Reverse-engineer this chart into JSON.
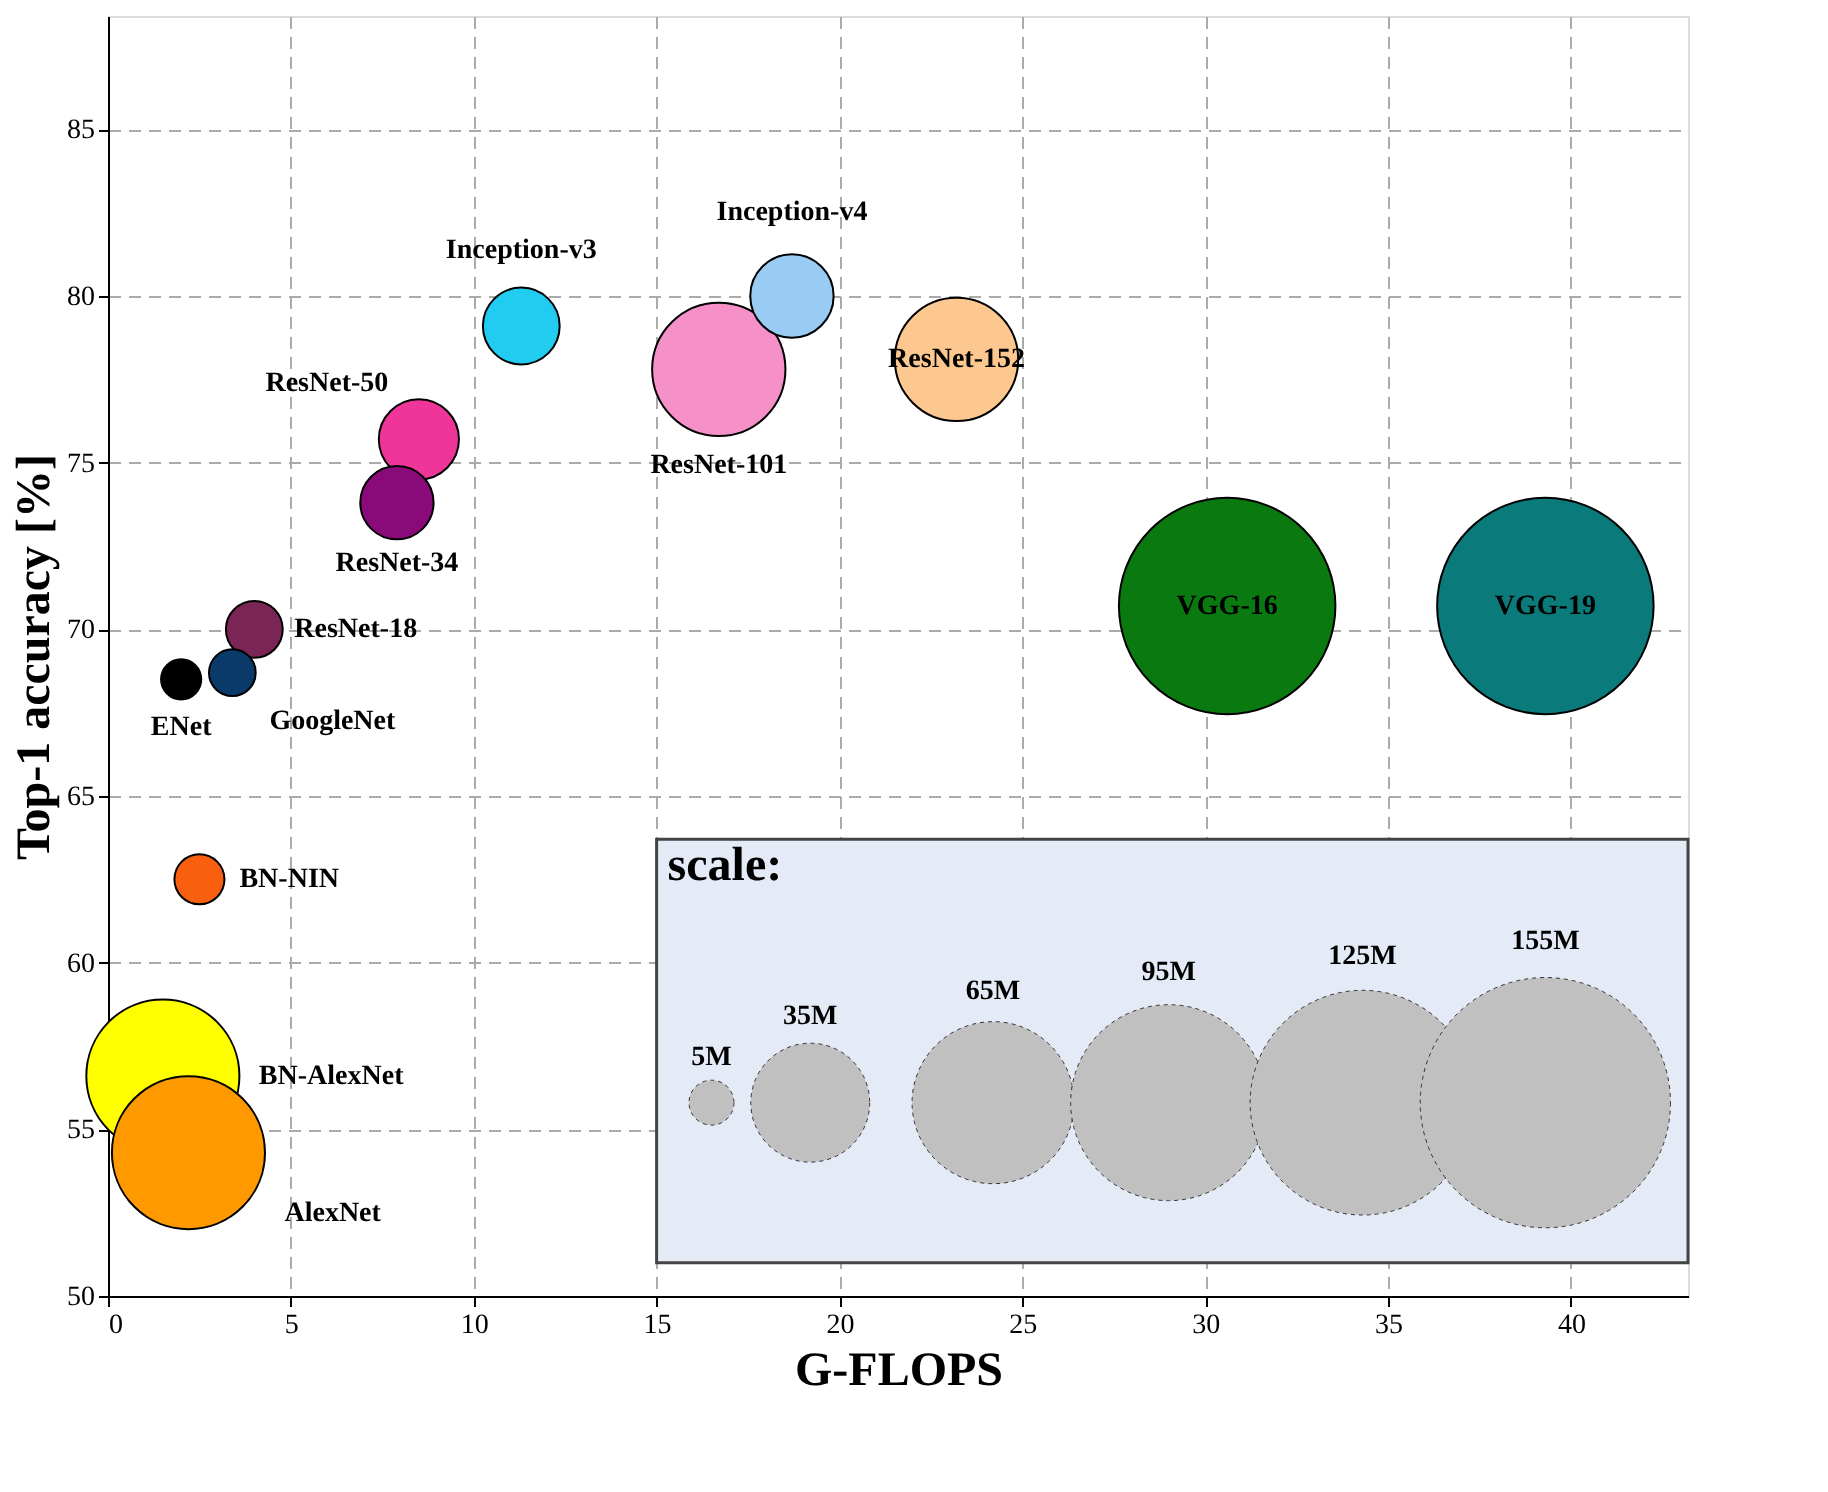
{
  "chart_data": {
    "type": "bubble",
    "xlabel": "G-FLOPS",
    "ylabel": "Top-1  accuracy  [%]",
    "legend_title": "scale:",
    "grid": true,
    "series": [
      {
        "name": "Inception-v3",
        "color": "#22ccf0",
        "x": [
          11.3
        ],
        "values": [
          79.1
        ],
        "sizes": [
          14.6
        ]
      },
      {
        "name": "Inception-v4",
        "color": "#99ccf5",
        "x": [
          18.7
        ],
        "values": [
          80.0
        ],
        "sizes": [
          17.2
        ]
      },
      {
        "name": "ResNet-101",
        "color": "#f590c8",
        "x": [
          16.7
        ],
        "values": [
          77.8
        ],
        "sizes": [
          44
        ]
      },
      {
        "name": "ResNet-152",
        "color": "#fcc890",
        "x": [
          23.2
        ],
        "values": [
          78.1
        ],
        "sizes": [
          37.7
        ]
      },
      {
        "name": "ResNet-50",
        "color": "#f0359a",
        "x": [
          8.5
        ],
        "values": [
          75.7
        ],
        "sizes": [
          15.9
        ]
      },
      {
        "name": "ResNet-34",
        "color": "#8a0a7a",
        "x": [
          7.9
        ],
        "values": [
          73.8
        ],
        "sizes": [
          13.3
        ]
      },
      {
        "name": "ResNet-18",
        "color": "#7a2555",
        "x": [
          4.0
        ],
        "values": [
          70.0
        ],
        "sizes": [
          8.0
        ]
      },
      {
        "name": "ENet",
        "color": "#000000",
        "x": [
          2.0
        ],
        "values": [
          68.5
        ],
        "sizes": [
          4.0
        ]
      },
      {
        "name": "GoogleNet",
        "color": "#0a3a6a",
        "x": [
          3.4
        ],
        "values": [
          68.7
        ],
        "sizes": [
          5.4
        ]
      },
      {
        "name": "BN-NIN",
        "color": "#f86010",
        "x": [
          2.5
        ],
        "values": [
          62.5
        ],
        "sizes": [
          6.2
        ]
      },
      {
        "name": "BN-AlexNet",
        "color": "#ffff00",
        "x": [
          1.5
        ],
        "values": [
          56.6
        ],
        "sizes": [
          58
        ]
      },
      {
        "name": "AlexNet",
        "color": "#ff9900",
        "x": [
          2.2
        ],
        "values": [
          54.3
        ],
        "sizes": [
          58
        ]
      },
      {
        "name": "VGG-16",
        "color": "#0a7a10",
        "x": [
          30.6
        ],
        "values": [
          70.7
        ],
        "sizes": [
          116
        ]
      },
      {
        "name": "VGG-19",
        "color": "#0a7a7a",
        "x": [
          39.3
        ],
        "values": [
          70.7
        ],
        "sizes": [
          116
        ]
      }
    ],
    "size_legend": [
      {
        "value": 5,
        "label": "5M"
      },
      {
        "value": 35,
        "label": "35M"
      },
      {
        "value": 65,
        "label": "65M"
      },
      {
        "value": 95,
        "label": "95M"
      },
      {
        "value": 125,
        "label": "125M"
      },
      {
        "value": 155,
        "label": "155M"
      }
    ],
    "xlim": [
      0,
      43.2
    ],
    "ylim": [
      50,
      88.4
    ],
    "xticks": [
      0,
      5,
      10,
      15,
      20,
      25,
      30,
      35,
      40
    ],
    "yticks": [
      50,
      55,
      60,
      65,
      70,
      75,
      80,
      85
    ]
  }
}
